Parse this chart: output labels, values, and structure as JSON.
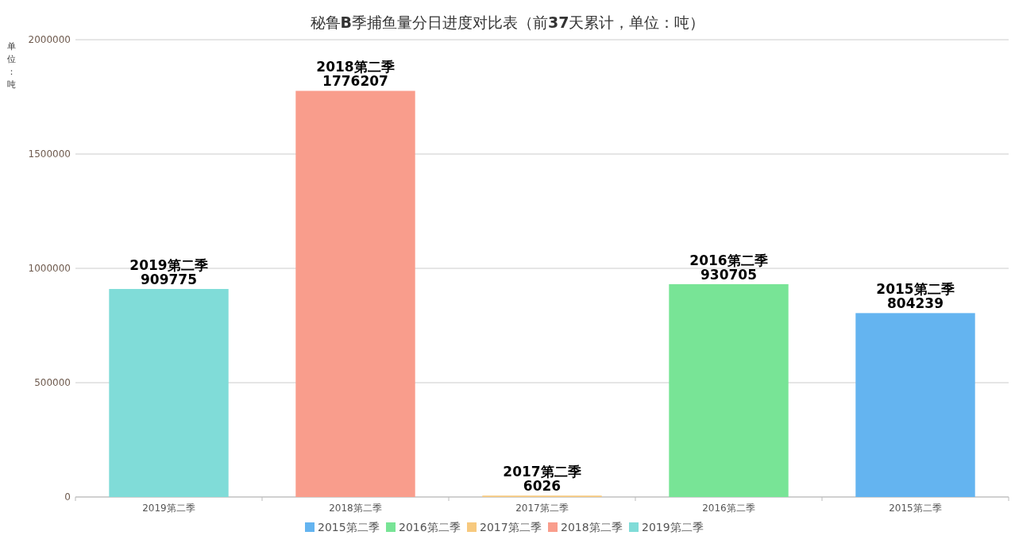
{
  "chart_data": {
    "type": "bar",
    "title": "秘鲁**B**季捕鱼量分日进度对比表（前**37**天累计，单位：吨）",
    "ylabel": "单位：吨",
    "categories": [
      "2019第二季",
      "2018第二季",
      "2017第二季",
      "2016第二季",
      "2015第二季"
    ],
    "series": [
      {
        "name": "2015第二季",
        "color": "#64b4f0",
        "values": [
          null,
          null,
          null,
          null,
          804239
        ]
      },
      {
        "name": "2016第二季",
        "color": "#78e496",
        "values": [
          null,
          null,
          null,
          930705,
          null
        ]
      },
      {
        "name": "2017第二季",
        "color": "#f7c97e",
        "values": [
          null,
          null,
          6026,
          null,
          null
        ]
      },
      {
        "name": "2018第二季",
        "color": "#f99d8c",
        "values": [
          null,
          1776207,
          null,
          null,
          null
        ]
      },
      {
        "name": "2019第二季",
        "color": "#80dcd8",
        "values": [
          909775,
          null,
          null,
          null,
          null
        ]
      }
    ],
    "ylim": [
      0,
      2000000
    ],
    "yticks": [
      0,
      500000,
      1000000,
      1500000,
      2000000
    ],
    "grid": "y",
    "legend": "bottom",
    "data_labels": true
  }
}
